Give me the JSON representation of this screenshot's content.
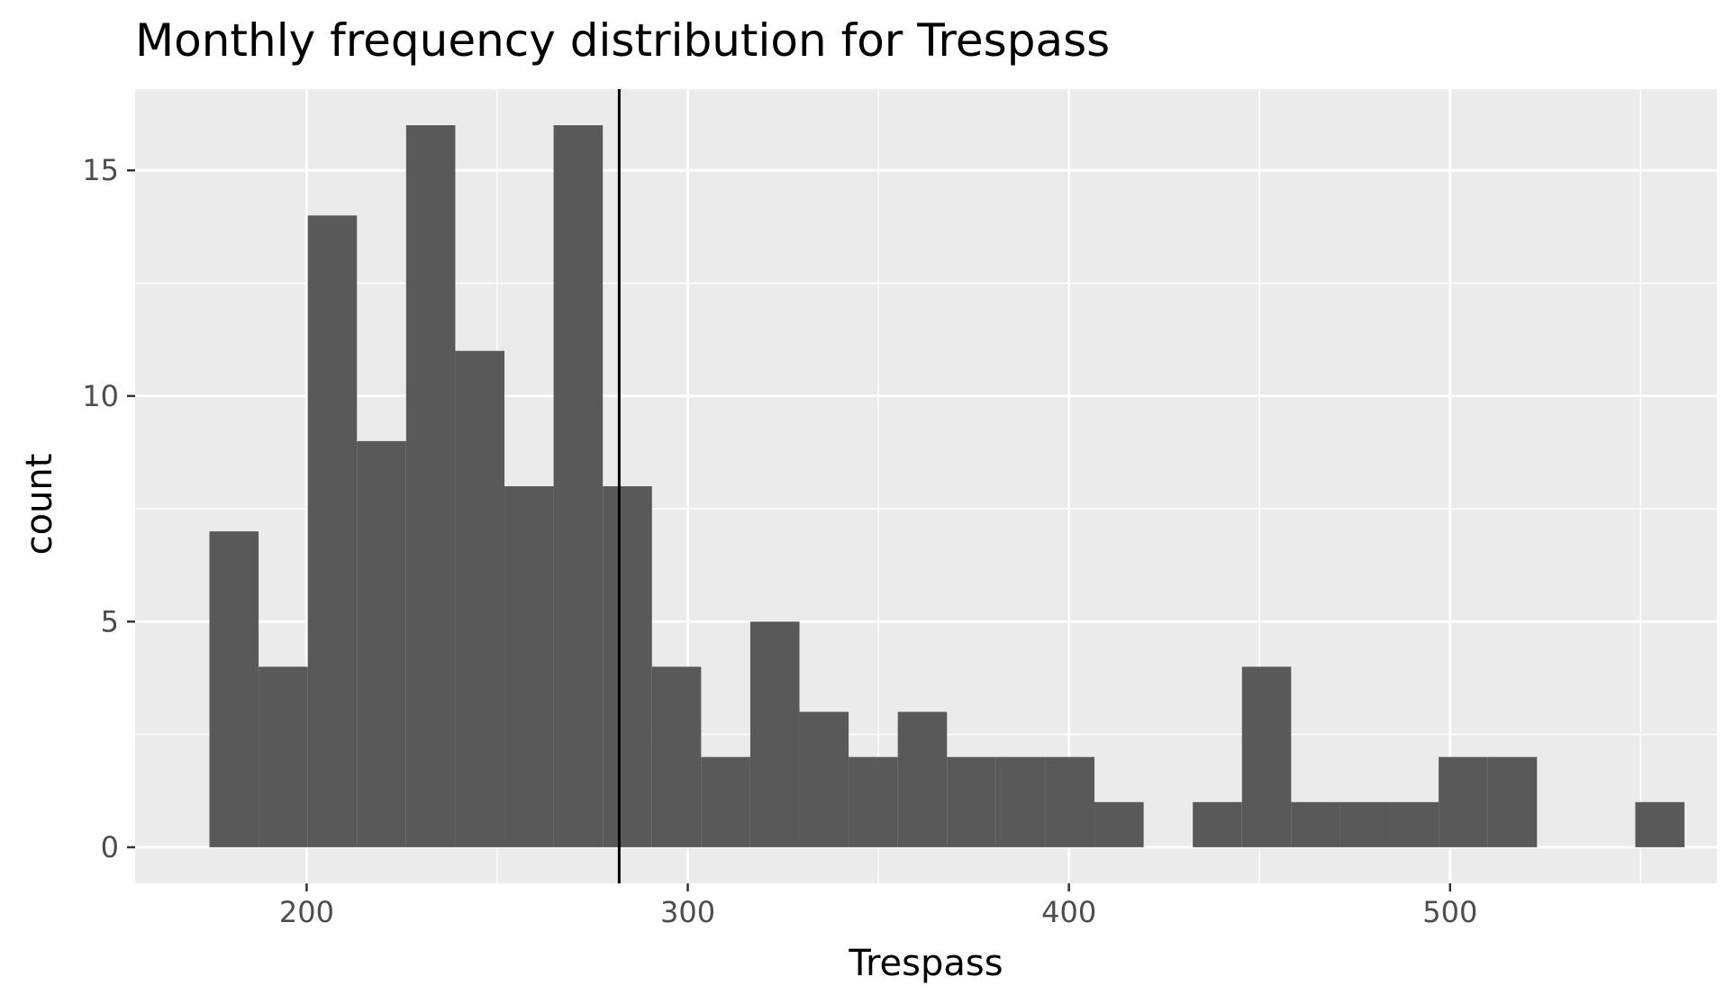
{
  "chart_data": {
    "type": "histogram",
    "title": "Monthly frequency distribution for Trespass",
    "xlabel": "Trespass",
    "ylabel": "count",
    "xlim": [
      155,
      570
    ],
    "ylim": [
      -0.8,
      16.8
    ],
    "x_ticks": [
      200,
      300,
      400,
      500
    ],
    "x_tick_labels": [
      "200",
      "300",
      "400",
      "500"
    ],
    "y_ticks": [
      0,
      5,
      10,
      15
    ],
    "y_tick_labels": [
      "0",
      "5",
      "10",
      "15"
    ],
    "grid": true,
    "bin_width": 12.9,
    "bins": [
      {
        "x0": 174.5,
        "x1": 187.4,
        "count": 7
      },
      {
        "x0": 187.4,
        "x1": 200.3,
        "count": 4
      },
      {
        "x0": 200.3,
        "x1": 213.2,
        "count": 14
      },
      {
        "x0": 213.2,
        "x1": 226.1,
        "count": 9
      },
      {
        "x0": 226.1,
        "x1": 239.0,
        "count": 16
      },
      {
        "x0": 239.0,
        "x1": 251.9,
        "count": 11
      },
      {
        "x0": 251.9,
        "x1": 264.8,
        "count": 8
      },
      {
        "x0": 264.8,
        "x1": 277.7,
        "count": 16
      },
      {
        "x0": 277.7,
        "x1": 290.6,
        "count": 8
      },
      {
        "x0": 290.6,
        "x1": 303.5,
        "count": 4
      },
      {
        "x0": 303.5,
        "x1": 316.4,
        "count": 2
      },
      {
        "x0": 316.4,
        "x1": 329.3,
        "count": 5
      },
      {
        "x0": 329.3,
        "x1": 342.2,
        "count": 3
      },
      {
        "x0": 342.2,
        "x1": 355.1,
        "count": 2
      },
      {
        "x0": 355.1,
        "x1": 368.0,
        "count": 3
      },
      {
        "x0": 368.0,
        "x1": 380.9,
        "count": 2
      },
      {
        "x0": 380.9,
        "x1": 393.8,
        "count": 2
      },
      {
        "x0": 393.8,
        "x1": 406.7,
        "count": 2
      },
      {
        "x0": 406.7,
        "x1": 419.6,
        "count": 1
      },
      {
        "x0": 419.6,
        "x1": 432.5,
        "count": 0
      },
      {
        "x0": 432.5,
        "x1": 445.4,
        "count": 1
      },
      {
        "x0": 445.4,
        "x1": 458.3,
        "count": 4
      },
      {
        "x0": 458.3,
        "x1": 471.2,
        "count": 1
      },
      {
        "x0": 471.2,
        "x1": 484.1,
        "count": 1
      },
      {
        "x0": 484.1,
        "x1": 497.0,
        "count": 1
      },
      {
        "x0": 497.0,
        "x1": 509.9,
        "count": 2
      },
      {
        "x0": 509.9,
        "x1": 522.8,
        "count": 2
      },
      {
        "x0": 522.8,
        "x1": 535.7,
        "count": 0
      },
      {
        "x0": 535.7,
        "x1": 548.6,
        "count": 0
      },
      {
        "x0": 548.6,
        "x1": 561.5,
        "count": 1
      }
    ],
    "vline": {
      "x": 282
    },
    "colors": {
      "panel_background": "#ebebeb",
      "grid_major": "#ffffff",
      "bar_fill": "#595959",
      "vline": "#000000",
      "tick_mark": "#333333"
    }
  }
}
